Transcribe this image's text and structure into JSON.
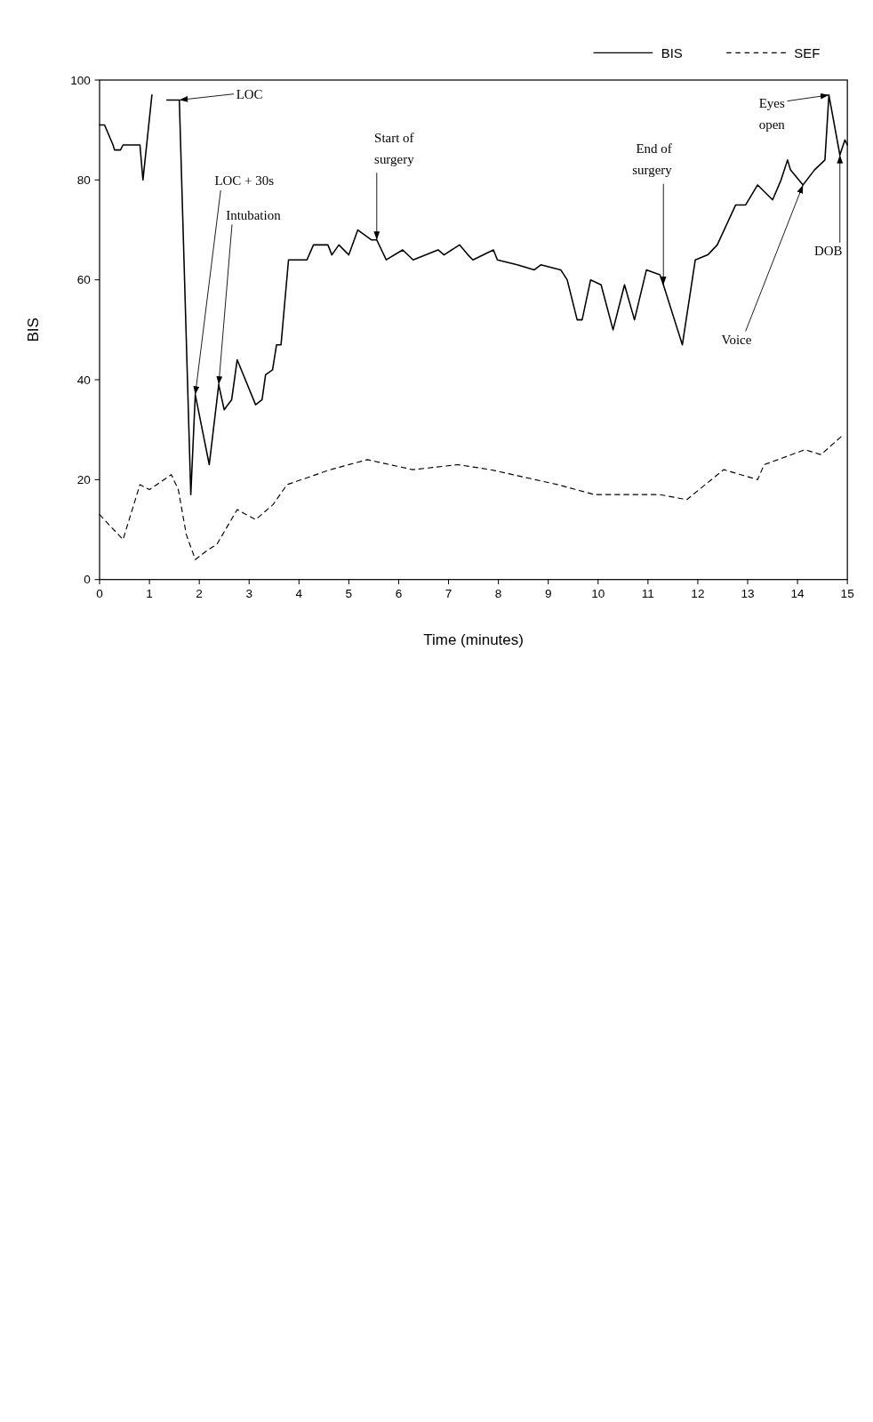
{
  "chart_data": {
    "type": "line",
    "xlabel": "Time (minutes)",
    "ylabel": "BIS",
    "xlim": [
      0,
      15
    ],
    "ylim": [
      0,
      100
    ],
    "xticks": [
      0,
      1,
      2,
      3,
      4,
      5,
      6,
      7,
      8,
      9,
      10,
      11,
      12,
      13,
      14,
      15
    ],
    "yticks": [
      0,
      20,
      40,
      60,
      80,
      100
    ],
    "legend": "top right",
    "grid": false,
    "series": [
      {
        "name": "BIS",
        "color": "#000000",
        "line_style": "solid",
        "x": [
          0,
          0.1,
          0.27,
          0.3,
          0.42,
          0.47,
          0.81,
          0.87,
          1.05,
          1.2,
          1.35,
          1.6,
          1.83,
          1.92,
          2.2,
          2.39,
          2.5,
          2.65,
          2.76,
          3.13,
          3.26,
          3.33,
          3.47,
          3.55,
          3.64,
          3.79,
          4.16,
          4.29,
          4.58,
          4.66,
          4.8,
          5.0,
          5.18,
          5.45,
          5.56,
          5.75,
          6.08,
          6.29,
          6.79,
          6.91,
          7.22,
          7.39,
          7.49,
          7.9,
          7.98,
          8.38,
          8.72,
          8.85,
          9.25,
          9.38,
          9.58,
          9.68,
          9.85,
          10.06,
          10.3,
          10.53,
          10.73,
          10.97,
          11.24,
          11.31,
          11.69,
          11.95,
          12.2,
          12.39,
          12.76,
          12.96,
          13.2,
          13.5,
          13.67,
          13.8,
          13.86,
          14.11,
          14.34,
          14.55,
          14.63,
          14.85,
          14.95,
          15
        ],
        "values": [
          91,
          91,
          87,
          86,
          86,
          87,
          87,
          80,
          97,
          null,
          96,
          96,
          17,
          37,
          23,
          39,
          34,
          36,
          44,
          35,
          36,
          41,
          42,
          47,
          47,
          64,
          64,
          67,
          67,
          65,
          67,
          65,
          70,
          68,
          68,
          64,
          66,
          64,
          66,
          65,
          67,
          65,
          64,
          66,
          64,
          63,
          62,
          63,
          62,
          60,
          52,
          52,
          60,
          59,
          50,
          59,
          52,
          62,
          61,
          59,
          47,
          64,
          65,
          67,
          75,
          75,
          79,
          76,
          80,
          84,
          82,
          79,
          82,
          84,
          97,
          85,
          88,
          87
        ]
      },
      {
        "name": "SEF",
        "color": "#000000",
        "line_style": "dashed",
        "x": [
          0,
          0.47,
          0.81,
          1.0,
          1.44,
          1.58,
          1.74,
          1.92,
          2.18,
          2.35,
          2.76,
          3.13,
          3.48,
          3.76,
          4.63,
          5.37,
          6.28,
          7.19,
          7.84,
          9.19,
          9.93,
          11.24,
          11.78,
          12.52,
          13.2,
          13.33,
          14.15,
          14.47,
          14.92
        ],
        "values": [
          13,
          8,
          19,
          18,
          21,
          18,
          9,
          4,
          6,
          7,
          14,
          12,
          15,
          19,
          22,
          24,
          22,
          23,
          22,
          19,
          17,
          17,
          16,
          22,
          20,
          23,
          26,
          25,
          29
        ]
      }
    ],
    "annotations": [
      {
        "text": "LOC",
        "x": 1.6,
        "y": 96
      },
      {
        "text": "LOC + 30s",
        "x": 1.92,
        "y": 37
      },
      {
        "text": "Intubation",
        "x": 2.39,
        "y": 39
      },
      {
        "text": "Start of\nsurgery",
        "x": 5.56,
        "y": 68
      },
      {
        "text": "End of\nsurgery",
        "x": 11.31,
        "y": 59
      },
      {
        "text": "Eyes\nopen",
        "x": 14.63,
        "y": 97
      },
      {
        "text": "DOB",
        "x": 14.85,
        "y": 85
      },
      {
        "text": "Voice",
        "x": 14.11,
        "y": 79
      }
    ]
  }
}
